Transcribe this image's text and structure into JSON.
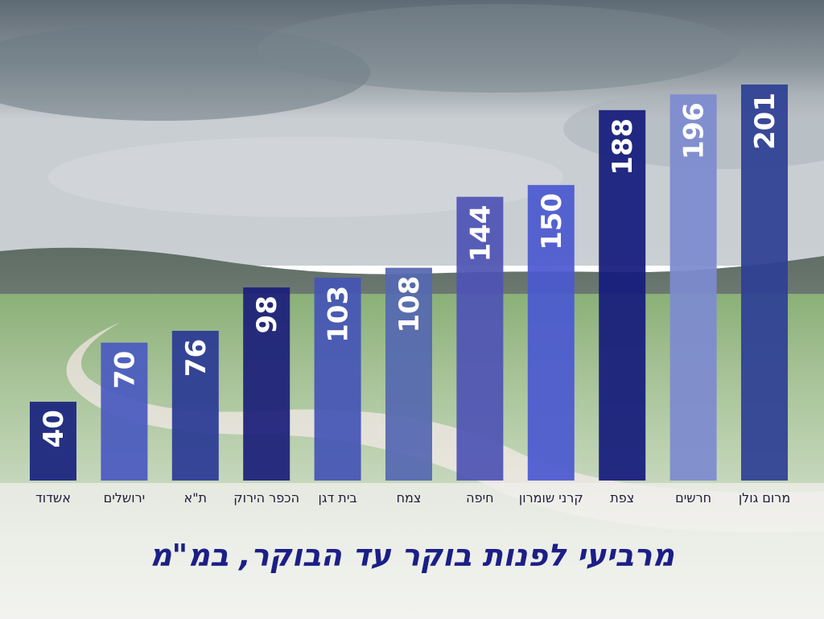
{
  "chart_data": {
    "type": "bar",
    "title": "מרביעי לפנות בוקר עד הבוקר, במ\"מ",
    "categories": [
      "אשדוד",
      "ירושלים",
      "ת\"א",
      "הכפר הירוק",
      "בית דגן",
      "צמח",
      "חיפה",
      "קרני שומרון",
      "צפת",
      "חרשים",
      "מרום גולן"
    ],
    "values": [
      40,
      70,
      76,
      98,
      103,
      108,
      144,
      150,
      188,
      196,
      201
    ],
    "bar_colors": [
      "#1a237e",
      "#4a5abf",
      "#2b3a94",
      "#1c1f7a",
      "#4555b5",
      "#5568b0",
      "#4f54b4",
      "#4b59d0",
      "#151c7c",
      "#7d8bd0",
      "#2e3f94"
    ],
    "ylim": [
      0,
      201
    ],
    "xlabel": "",
    "ylabel": ""
  }
}
